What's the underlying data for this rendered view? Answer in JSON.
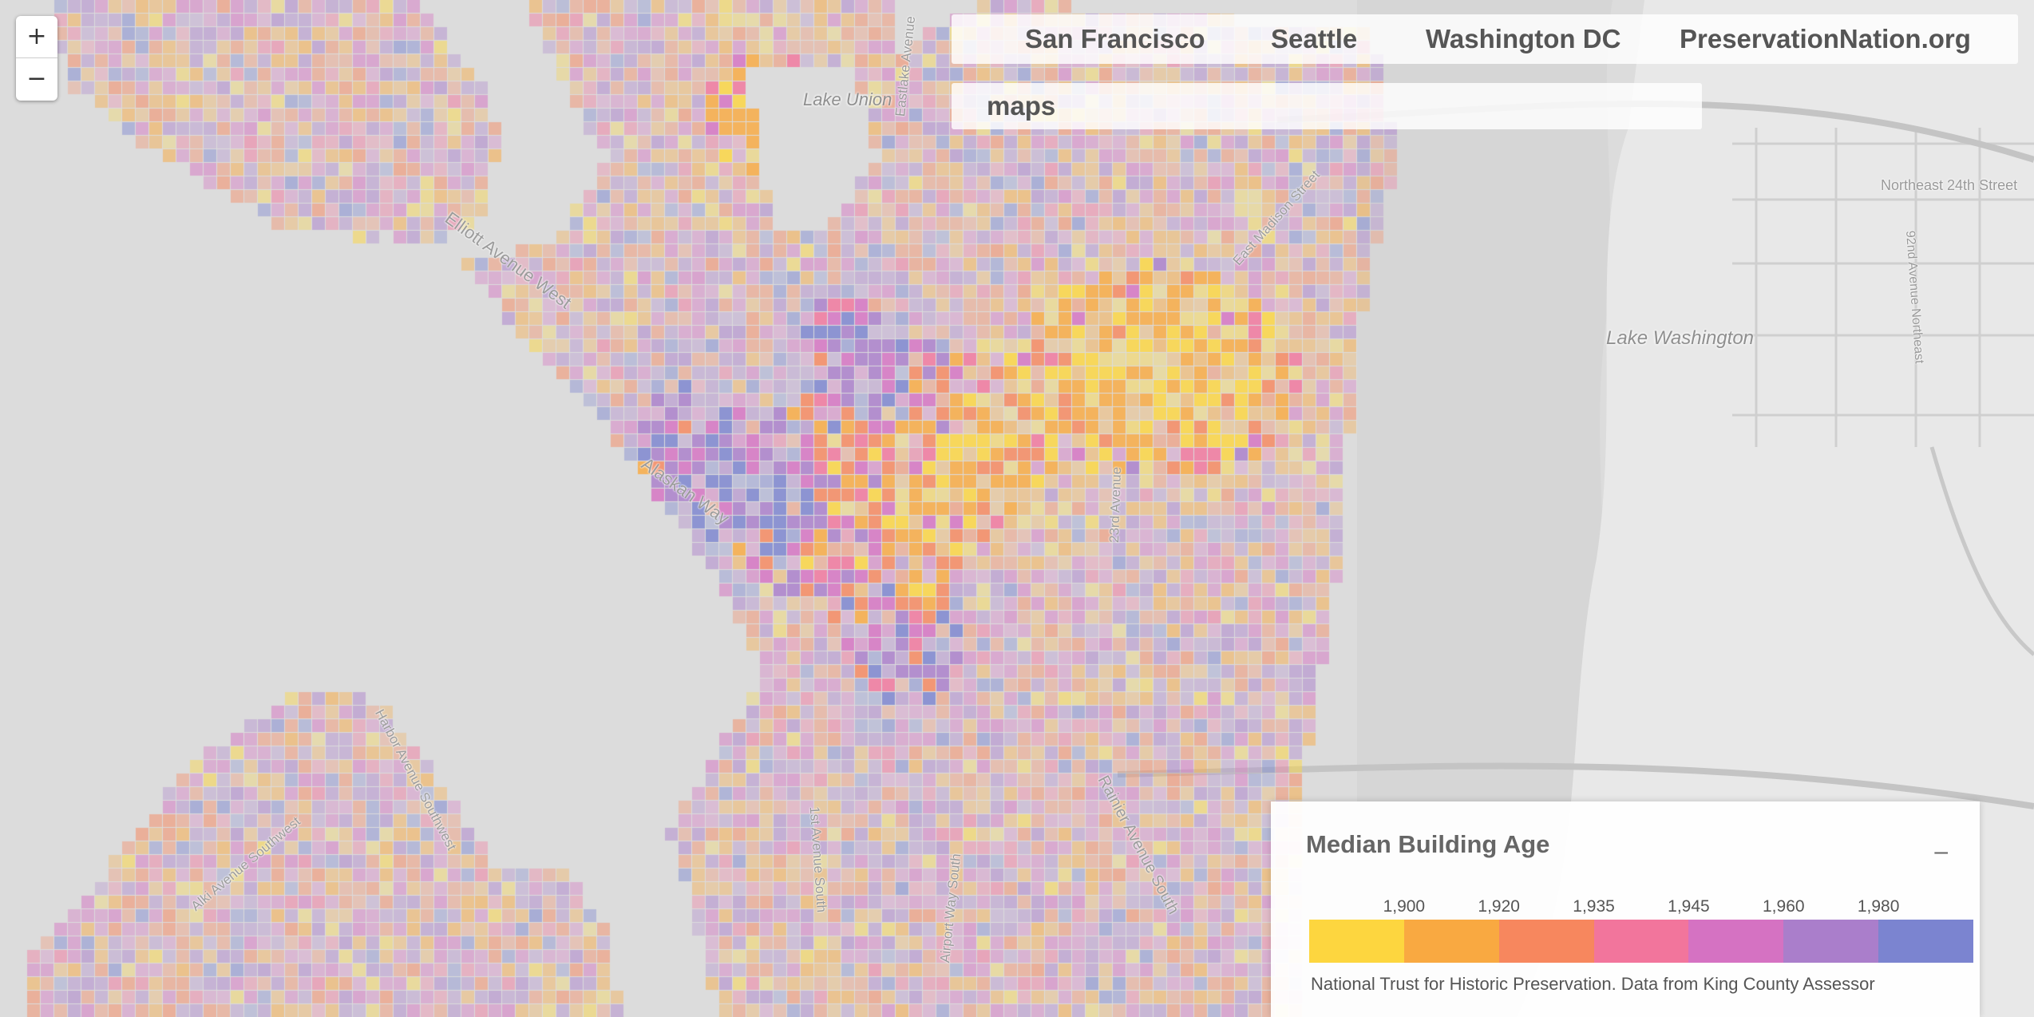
{
  "zoom": {
    "in_label": "+",
    "out_label": "−"
  },
  "nav": {
    "links": [
      "San Francisco",
      "Seattle",
      "Washington DC",
      "PreservationNation.org"
    ]
  },
  "maps_title": "maps",
  "legend": {
    "title": "Median Building Age",
    "collapse_label": "–",
    "ticks": [
      "1,900",
      "1,920",
      "1,935",
      "1,945",
      "1,960",
      "1,980"
    ],
    "colors": [
      "#fdd63f",
      "#f9a941",
      "#f7875e",
      "#f2759c",
      "#d572c2",
      "#aa7ecb",
      "#7b84d0"
    ],
    "source": "National Trust for Historic Preservation. Data from King County Assessor"
  },
  "map_labels": {
    "water": [
      "Lake Union",
      "Lake Washington"
    ],
    "streets": [
      "Elliott Avenue West",
      "Alaskan Way",
      "Eastlake Avenue",
      "East Madison Street",
      "Northeast 24th Street",
      "92nd Avenue Northeast",
      "23rd Avenue",
      "Harbor Avenue Southwest",
      "Alki Avenue Southwest",
      "1st Avenue South",
      "Airport Way South",
      "Rainier Avenue South"
    ]
  }
}
